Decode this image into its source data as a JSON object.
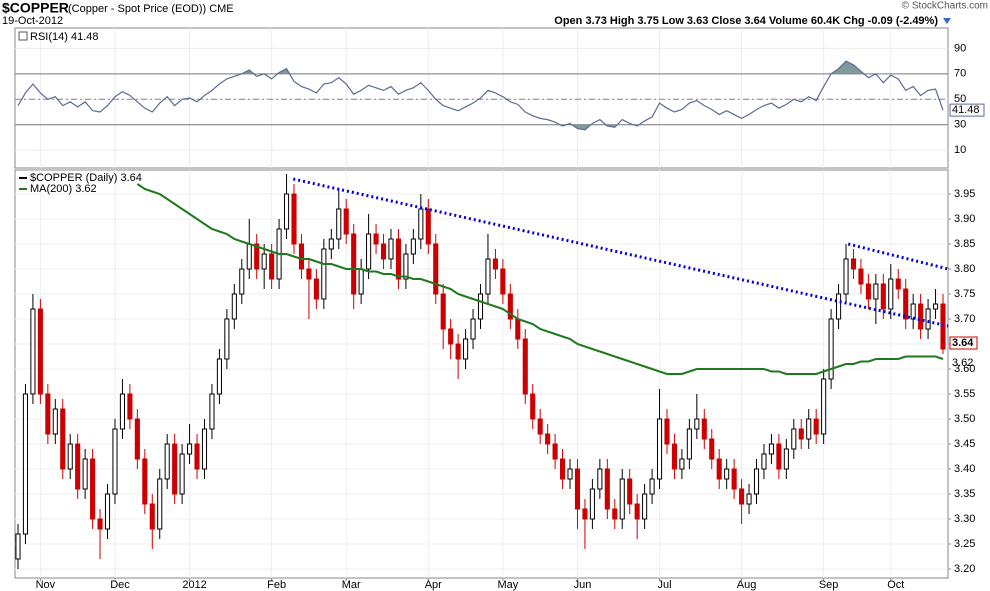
{
  "chart_data": [
    {
      "type": "line",
      "title": "$COPPER",
      "subtitle": "(Copper - Spot Price (EOD)) CME",
      "date": "19-Oct-2012",
      "quote": "Open 3.73 High 3.75 Low 3.63 Close 3.64 Volume 60.4K Chg -0.09 (-2.49%)",
      "credit": "© StockCharts.com",
      "series": [
        {
          "name": "RSI(14) 41.48",
          "color": "#5a6c94",
          "fill_color": "#7f9a9a",
          "values": [
            45,
            55,
            62,
            55,
            50,
            52,
            45,
            48,
            44,
            48,
            41,
            40,
            45,
            52,
            56,
            53,
            48,
            43,
            40,
            47,
            52,
            45,
            50,
            51,
            48,
            53,
            57,
            62,
            66,
            68,
            70,
            73,
            68,
            70,
            66,
            71,
            74,
            64,
            60,
            58,
            55,
            62,
            63,
            67,
            62,
            54,
            57,
            61,
            59,
            57,
            60,
            54,
            57,
            59,
            63,
            57,
            50,
            45,
            43,
            41,
            44,
            47,
            51,
            57,
            55,
            52,
            48,
            46,
            40,
            37,
            35,
            34,
            32,
            29,
            31,
            27,
            26,
            31,
            34,
            29,
            28,
            34,
            31,
            29,
            33,
            36,
            47,
            43,
            40,
            42,
            47,
            49,
            45,
            42,
            38,
            41,
            38,
            35,
            38,
            42,
            45,
            47,
            43,
            46,
            50,
            48,
            52,
            49,
            60,
            70,
            74,
            80,
            77,
            72,
            67,
            70,
            63,
            69,
            66,
            57,
            60,
            53,
            57,
            58,
            41.48
          ]
        }
      ],
      "overbought": 70,
      "oversold": 30,
      "midline": 50,
      "ylim": [
        -4,
        106
      ],
      "yticks": [
        10,
        30,
        50,
        70,
        90
      ],
      "grid": true
    },
    {
      "type": "candlestick",
      "series": [
        {
          "name": "$COPPER (Daily) 3.64",
          "up_color": "#000000",
          "down_color": "#cc0000",
          "open": [
            3.22,
            3.27,
            3.55,
            3.72,
            3.55,
            3.47,
            3.52,
            3.4,
            3.45,
            3.36,
            3.42,
            3.3,
            3.28,
            3.35,
            3.48,
            3.55,
            3.5,
            3.42,
            3.33,
            3.28,
            3.38,
            3.45,
            3.35,
            3.43,
            3.45,
            3.4,
            3.48,
            3.55,
            3.62,
            3.7,
            3.75,
            3.8,
            3.85,
            3.8,
            3.83,
            3.78,
            3.88,
            3.95,
            3.85,
            3.8,
            3.78,
            3.74,
            3.84,
            3.86,
            3.92,
            3.87,
            3.75,
            3.8,
            3.87,
            3.85,
            3.82,
            3.86,
            3.78,
            3.83,
            3.86,
            3.92,
            3.85,
            3.75,
            3.68,
            3.65,
            3.62,
            3.66,
            3.7,
            3.75,
            3.82,
            3.8,
            3.75,
            3.7,
            3.66,
            3.55,
            3.5,
            3.47,
            3.45,
            3.42,
            3.38,
            3.4,
            3.32,
            3.3,
            3.36,
            3.4,
            3.32,
            3.3,
            3.38,
            3.33,
            3.3,
            3.35,
            3.38,
            3.5,
            3.45,
            3.4,
            3.42,
            3.48,
            3.5,
            3.46,
            3.42,
            3.38,
            3.4,
            3.36,
            3.33,
            3.35,
            3.4,
            3.43,
            3.45,
            3.4,
            3.44,
            3.48,
            3.46,
            3.5,
            3.47,
            3.58,
            3.7,
            3.75,
            3.82,
            3.8,
            3.77,
            3.74,
            3.77,
            3.72,
            3.78,
            3.76,
            3.7,
            3.73,
            3.68,
            3.72,
            3.73
          ],
          "high": [
            3.29,
            3.57,
            3.75,
            3.74,
            3.57,
            3.54,
            3.54,
            3.47,
            3.47,
            3.44,
            3.44,
            3.32,
            3.37,
            3.5,
            3.58,
            3.57,
            3.52,
            3.44,
            3.35,
            3.4,
            3.47,
            3.47,
            3.45,
            3.49,
            3.47,
            3.5,
            3.57,
            3.64,
            3.72,
            3.77,
            3.82,
            3.9,
            3.87,
            3.85,
            3.85,
            3.9,
            3.99,
            3.97,
            3.87,
            3.82,
            3.8,
            3.86,
            3.88,
            3.96,
            3.94,
            3.89,
            3.82,
            3.91,
            3.89,
            3.87,
            3.88,
            3.88,
            3.85,
            3.88,
            3.95,
            3.94,
            3.87,
            3.77,
            3.7,
            3.67,
            3.68,
            3.72,
            3.77,
            3.87,
            3.84,
            3.82,
            3.77,
            3.72,
            3.68,
            3.57,
            3.52,
            3.49,
            3.47,
            3.44,
            3.42,
            3.42,
            3.34,
            3.38,
            3.42,
            3.42,
            3.34,
            3.4,
            3.4,
            3.35,
            3.37,
            3.4,
            3.56,
            3.52,
            3.47,
            3.44,
            3.5,
            3.55,
            3.52,
            3.48,
            3.44,
            3.42,
            3.42,
            3.38,
            3.37,
            3.42,
            3.45,
            3.47,
            3.47,
            3.46,
            3.5,
            3.5,
            3.52,
            3.52,
            3.6,
            3.72,
            3.77,
            3.85,
            3.84,
            3.82,
            3.79,
            3.79,
            3.79,
            3.81,
            3.8,
            3.78,
            3.75,
            3.75,
            3.74,
            3.76,
            3.75
          ],
          "low": [
            3.2,
            3.25,
            3.53,
            3.53,
            3.45,
            3.45,
            3.38,
            3.38,
            3.34,
            3.34,
            3.28,
            3.22,
            3.26,
            3.33,
            3.46,
            3.48,
            3.4,
            3.31,
            3.24,
            3.26,
            3.36,
            3.33,
            3.33,
            3.41,
            3.38,
            3.38,
            3.46,
            3.53,
            3.6,
            3.68,
            3.73,
            3.78,
            3.78,
            3.76,
            3.76,
            3.76,
            3.86,
            3.83,
            3.78,
            3.7,
            3.72,
            3.72,
            3.82,
            3.84,
            3.85,
            3.72,
            3.73,
            3.78,
            3.83,
            3.8,
            3.8,
            3.76,
            3.76,
            3.81,
            3.84,
            3.83,
            3.73,
            3.64,
            3.62,
            3.58,
            3.6,
            3.64,
            3.68,
            3.73,
            3.78,
            3.73,
            3.68,
            3.64,
            3.53,
            3.48,
            3.45,
            3.43,
            3.4,
            3.36,
            3.36,
            3.28,
            3.24,
            3.28,
            3.34,
            3.3,
            3.28,
            3.28,
            3.31,
            3.26,
            3.28,
            3.33,
            3.36,
            3.43,
            3.38,
            3.38,
            3.4,
            3.46,
            3.44,
            3.4,
            3.36,
            3.36,
            3.34,
            3.29,
            3.31,
            3.33,
            3.38,
            3.41,
            3.38,
            3.38,
            3.42,
            3.44,
            3.44,
            3.45,
            3.45,
            3.56,
            3.68,
            3.73,
            3.78,
            3.75,
            3.72,
            3.69,
            3.7,
            3.7,
            3.74,
            3.68,
            3.68,
            3.66,
            3.66,
            3.7,
            3.63
          ],
          "close": [
            3.27,
            3.55,
            3.72,
            3.55,
            3.47,
            3.52,
            3.4,
            3.45,
            3.36,
            3.42,
            3.3,
            3.28,
            3.35,
            3.48,
            3.55,
            3.5,
            3.42,
            3.33,
            3.28,
            3.38,
            3.45,
            3.35,
            3.43,
            3.45,
            3.4,
            3.48,
            3.55,
            3.62,
            3.7,
            3.75,
            3.8,
            3.85,
            3.8,
            3.83,
            3.78,
            3.88,
            3.95,
            3.85,
            3.8,
            3.78,
            3.74,
            3.84,
            3.86,
            3.92,
            3.87,
            3.75,
            3.8,
            3.87,
            3.85,
            3.82,
            3.86,
            3.78,
            3.83,
            3.86,
            3.92,
            3.85,
            3.75,
            3.68,
            3.65,
            3.62,
            3.66,
            3.7,
            3.75,
            3.82,
            3.8,
            3.75,
            3.7,
            3.66,
            3.55,
            3.5,
            3.47,
            3.45,
            3.42,
            3.38,
            3.4,
            3.32,
            3.3,
            3.36,
            3.4,
            3.32,
            3.3,
            3.38,
            3.33,
            3.3,
            3.35,
            3.38,
            3.5,
            3.45,
            3.4,
            3.42,
            3.48,
            3.5,
            3.46,
            3.42,
            3.38,
            3.4,
            3.36,
            3.33,
            3.35,
            3.4,
            3.43,
            3.45,
            3.4,
            3.44,
            3.48,
            3.46,
            3.5,
            3.47,
            3.58,
            3.7,
            3.75,
            3.82,
            3.8,
            3.77,
            3.74,
            3.77,
            3.72,
            3.78,
            3.76,
            3.7,
            3.73,
            3.68,
            3.72,
            3.73,
            3.64
          ]
        },
        {
          "name": "MA(200) 3.62",
          "color": "#1f7a1f",
          "values": [
            null,
            null,
            null,
            null,
            null,
            null,
            null,
            null,
            null,
            null,
            null,
            null,
            null,
            null,
            null,
            null,
            3.97,
            3.96,
            3.955,
            3.95,
            3.94,
            3.93,
            3.92,
            3.91,
            3.9,
            3.89,
            3.88,
            3.875,
            3.87,
            3.86,
            3.855,
            3.85,
            3.845,
            3.84,
            3.835,
            3.83,
            3.83,
            3.825,
            3.82,
            3.82,
            3.815,
            3.81,
            3.81,
            3.805,
            3.8,
            3.8,
            3.8,
            3.795,
            3.795,
            3.79,
            3.79,
            3.785,
            3.785,
            3.78,
            3.78,
            3.775,
            3.77,
            3.765,
            3.76,
            3.75,
            3.745,
            3.74,
            3.735,
            3.73,
            3.725,
            3.72,
            3.71,
            3.7,
            3.695,
            3.69,
            3.68,
            3.675,
            3.67,
            3.665,
            3.66,
            3.65,
            3.645,
            3.64,
            3.635,
            3.63,
            3.625,
            3.62,
            3.615,
            3.61,
            3.605,
            3.6,
            3.595,
            3.59,
            3.59,
            3.59,
            3.595,
            3.6,
            3.6,
            3.6,
            3.6,
            3.6,
            3.6,
            3.6,
            3.6,
            3.6,
            3.6,
            3.595,
            3.595,
            3.59,
            3.59,
            3.59,
            3.59,
            3.59,
            3.595,
            3.6,
            3.605,
            3.61,
            3.61,
            3.615,
            3.615,
            3.62,
            3.62,
            3.62,
            3.62,
            3.625,
            3.625,
            3.625,
            3.625,
            3.625,
            3.62
          ]
        }
      ],
      "trendlines": [
        {
          "color": "#0000dd",
          "x": [
            36.9,
            124.7
          ],
          "y": [
            3.98,
            3.686
          ]
        },
        {
          "color": "#0000dd",
          "x": [
            111.3,
            124.7
          ],
          "y": [
            3.85,
            3.8
          ]
        }
      ],
      "ylim": [
        3.182,
        3.998
      ],
      "yticks": [
        {
          "value": 3.2,
          "label": "3.20"
        },
        3.25,
        {
          "value": 3.3,
          "label": "3.30"
        },
        3.35,
        {
          "value": 3.4,
          "label": "3.40"
        },
        3.45,
        {
          "value": 3.5,
          "label": "3.50"
        },
        3.55,
        {
          "value": 3.6,
          "label": "3.60"
        },
        3.65,
        {
          "value": 3.7,
          "label": "3.70"
        },
        3.75,
        {
          "value": 3.8,
          "label": "3.80"
        },
        3.85,
        {
          "value": 3.9,
          "label": "3.90"
        },
        3.95
      ],
      "xticks": [
        {
          "value": 3,
          "label": "Nov"
        },
        {
          "value": 13,
          "label": "Dec"
        },
        {
          "value": 23,
          "label": "2012"
        },
        {
          "value": 34,
          "label": "Feb"
        },
        {
          "value": 44,
          "label": "Mar"
        },
        {
          "value": 55,
          "label": "Apr"
        },
        {
          "value": 65,
          "label": "May"
        },
        {
          "value": 75,
          "label": "Jun"
        },
        {
          "value": 86,
          "label": "Jul"
        },
        {
          "value": 97,
          "label": "Aug"
        },
        {
          "value": 108,
          "label": "Sep"
        },
        {
          "value": 117,
          "label": "Oct"
        }
      ],
      "grid": true
    }
  ]
}
